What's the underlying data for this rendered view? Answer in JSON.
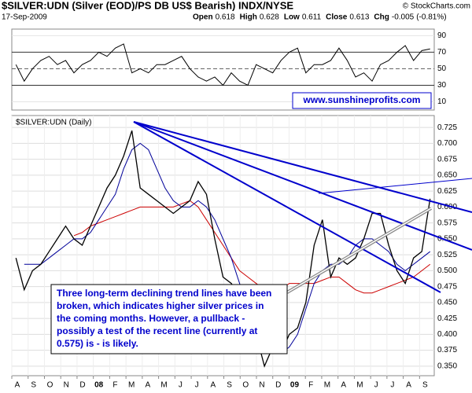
{
  "chart_data": {
    "type": "line",
    "title": "$SILVER:UDN (Silver (EOD)/PS DB US$ Bearish) INDX/NYSE",
    "credit": "© StockCharts.com",
    "date": "17-Sep-2009",
    "quote": [
      {
        "label": "Open",
        "value": 0.618
      },
      {
        "label": "High",
        "value": 0.628
      },
      {
        "label": "Low",
        "value": 0.611
      },
      {
        "label": "Close",
        "value": 0.613
      },
      {
        "label": "Chg",
        "value": -0.005
      }
    ],
    "change_pct": "(-0.81%)",
    "website": "www.sunshineprofits.com",
    "panel_label": "$SILVER:UDN (Daily)",
    "annotation": [
      "Three long-term declining trend lines have been",
      "broken, which indicates higher silver prices in",
      "the coming months. However, a pullback -",
      "possibly a test of the recent line (currently at",
      "0.575) is - is likely."
    ],
    "x_labels": [
      "A",
      "S",
      "O",
      "N",
      "D",
      "08",
      "F",
      "M",
      "A",
      "M",
      "J",
      "J",
      "A",
      "S",
      "O",
      "N",
      "D",
      "09",
      "F",
      "M",
      "A",
      "M",
      "J",
      "J",
      "A",
      "S"
    ],
    "ylim": [
      0.335,
      0.74
    ],
    "yticks": [
      {
        "value": 0.35,
        "label": "0.350"
      },
      0.375,
      {
        "value": 0.4,
        "label": "0.400"
      },
      0.425,
      {
        "value": 0.45,
        "label": "0.450"
      },
      0.475,
      {
        "value": 0.5,
        "label": "0.500"
      },
      0.525,
      {
        "value": 0.55,
        "label": "0.550"
      },
      0.575,
      {
        "value": 0.6,
        "label": "0.600"
      },
      0.625,
      {
        "value": 0.65,
        "label": "0.650"
      },
      0.675,
      {
        "value": 0.7,
        "label": "0.700"
      },
      0.725
    ],
    "series": [
      {
        "color": "#000000",
        "values": [
          0.52,
          0.47,
          0.5,
          0.51,
          0.53,
          0.55,
          0.57,
          0.55,
          0.54,
          0.57,
          0.6,
          0.63,
          0.65,
          0.68,
          0.72,
          0.63,
          0.62,
          0.61,
          0.6,
          0.59,
          0.6,
          0.61,
          0.64,
          0.62,
          0.55,
          0.49,
          0.48,
          0.46,
          0.42,
          0.4,
          0.35,
          0.38,
          0.37,
          0.4,
          0.41,
          0.45,
          0.54,
          0.58,
          0.49,
          0.52,
          0.51,
          0.52,
          0.55,
          0.59,
          0.59,
          0.54,
          0.5,
          0.48,
          0.52,
          0.53,
          0.613
        ]
      },
      {
        "color": "#000099",
        "values": [
          null,
          0.51,
          0.51,
          0.51,
          0.52,
          0.53,
          0.54,
          0.55,
          0.55,
          0.56,
          0.58,
          0.6,
          0.62,
          0.66,
          0.69,
          0.7,
          0.69,
          0.66,
          0.63,
          0.61,
          0.6,
          0.6,
          0.61,
          0.6,
          0.58,
          0.55,
          0.52,
          0.48,
          0.44,
          0.41,
          0.39,
          0.37,
          0.37,
          0.38,
          0.4,
          0.44,
          0.48,
          0.5,
          0.51,
          0.51,
          0.52,
          0.54,
          0.55,
          0.55,
          0.54,
          0.53,
          0.51,
          0.5,
          0.51,
          0.52,
          0.53
        ]
      },
      {
        "color": "#cc0000",
        "values": [
          null,
          null,
          null,
          null,
          null,
          null,
          null,
          0.555,
          0.56,
          0.57,
          0.575,
          0.58,
          0.585,
          0.59,
          0.595,
          0.6,
          0.6,
          0.6,
          0.6,
          0.6,
          0.605,
          0.61,
          0.6,
          0.58,
          0.56,
          0.54,
          0.52,
          0.5,
          0.49,
          0.48,
          0.47,
          0.47,
          0.47,
          0.48,
          0.48,
          0.48,
          0.48,
          0.485,
          0.49,
          0.49,
          0.48,
          0.47,
          0.465,
          0.465,
          0.47,
          0.475,
          0.48,
          0.485,
          0.49,
          0.5,
          0.51
        ]
      }
    ],
    "rsi": {
      "color": "#000000",
      "ylim": [
        0,
        98
      ],
      "yticks": [
        10,
        30,
        50,
        70,
        90
      ],
      "values": [
        55,
        35,
        50,
        60,
        65,
        55,
        60,
        45,
        55,
        60,
        70,
        65,
        75,
        80,
        45,
        50,
        45,
        55,
        55,
        60,
        65,
        50,
        40,
        35,
        40,
        30,
        45,
        35,
        30,
        55,
        50,
        45,
        60,
        70,
        75,
        45,
        55,
        55,
        60,
        75,
        60,
        40,
        45,
        35,
        55,
        60,
        70,
        78,
        60,
        72,
        74
      ]
    }
  }
}
